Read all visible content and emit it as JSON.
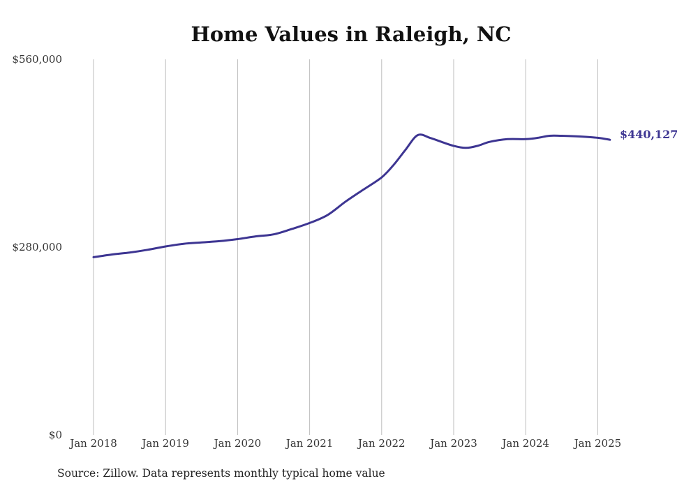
{
  "chart_data": {
    "type": "line",
    "title": "Home Values in Raleigh, NC",
    "xlabel": "",
    "ylabel": "",
    "source": "Source: Zillow. Data represents monthly typical home value",
    "x_tick_labels": [
      "Jan 2018",
      "Jan 2019",
      "Jan 2020",
      "Jan 2021",
      "Jan 2022",
      "Jan 2023",
      "Jan 2024",
      "Jan 2025"
    ],
    "x_tick_values": [
      2018,
      2019,
      2020,
      2021,
      2022,
      2023,
      2024,
      2025
    ],
    "y_tick_labels": [
      "$0",
      "$280,000",
      "$560,000"
    ],
    "y_tick_values": [
      0,
      280000,
      560000
    ],
    "xlim": [
      2018,
      2025.17
    ],
    "ylim": [
      0,
      560000
    ],
    "grid": "vertical",
    "color": "#3d3592",
    "end_label": "$440,127",
    "series": [
      {
        "values": [
          [
            2018.0,
            265000
          ],
          [
            2018.25,
            269000
          ],
          [
            2018.5,
            272000
          ],
          [
            2018.75,
            276000
          ],
          [
            2019.0,
            281000
          ],
          [
            2019.25,
            285000
          ],
          [
            2019.5,
            287000
          ],
          [
            2019.75,
            289000
          ],
          [
            2020.0,
            292000
          ],
          [
            2020.25,
            296000
          ],
          [
            2020.5,
            299000
          ],
          [
            2020.75,
            307000
          ],
          [
            2021.0,
            316000
          ],
          [
            2021.25,
            328000
          ],
          [
            2021.5,
            348000
          ],
          [
            2021.75,
            366000
          ],
          [
            2022.0,
            384000
          ],
          [
            2022.17,
            403000
          ],
          [
            2022.33,
            425000
          ],
          [
            2022.5,
            447000
          ],
          [
            2022.67,
            443000
          ],
          [
            2022.83,
            437000
          ],
          [
            2023.0,
            431000
          ],
          [
            2023.17,
            428000
          ],
          [
            2023.33,
            431000
          ],
          [
            2023.5,
            437000
          ],
          [
            2023.75,
            441000
          ],
          [
            2024.0,
            441000
          ],
          [
            2024.17,
            443000
          ],
          [
            2024.33,
            446000
          ],
          [
            2024.5,
            446000
          ],
          [
            2024.75,
            445000
          ],
          [
            2025.0,
            443000
          ],
          [
            2025.17,
            440127
          ]
        ]
      }
    ]
  }
}
